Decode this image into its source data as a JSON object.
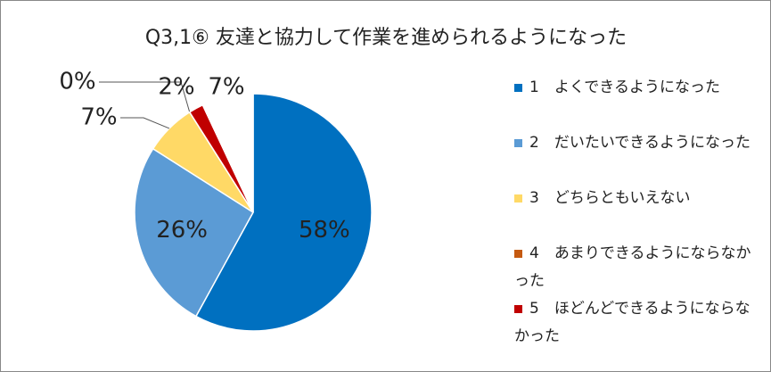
{
  "chart_data": {
    "type": "pie",
    "title": "Q3,1⑥ 友達と協力して作業を進められるようになった",
    "categories": [
      "1　よくできるようになった",
      "2　だいたいできるようになった",
      "3　どちらともいえない",
      "4　あまりできるようにならなかった",
      "5　ほどんどできるようにならなかった",
      null
    ],
    "values": [
      58,
      26,
      7,
      0,
      2,
      7
    ],
    "value_labels": [
      "58%",
      "26%",
      "7%",
      "0%",
      "2%",
      "7%"
    ],
    "colors": [
      "#0070c0",
      "#5b9bd5",
      "#ffd966",
      "#c55a11",
      "#c00000",
      "#ffffff"
    ],
    "legend": "right"
  }
}
